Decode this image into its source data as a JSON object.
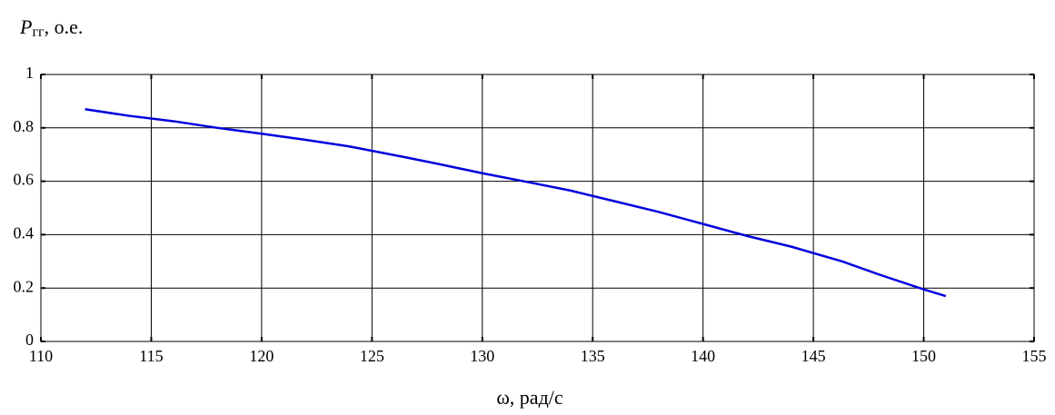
{
  "chart_data": {
    "type": "line",
    "ylabel": {
      "symbol": "P",
      "subscript": "гг",
      "rest": ", о.е."
    },
    "xlabel": "ω, рад/с",
    "x": [
      112,
      114,
      116,
      118,
      120,
      122,
      124,
      126.5,
      128,
      130,
      132,
      134,
      136,
      138,
      140,
      142,
      144,
      146.3,
      148,
      150,
      151
    ],
    "series": [
      {
        "color": "#0000dd",
        "values": [
          0.87,
          0.845,
          0.825,
          0.8,
          0.778,
          0.755,
          0.73,
          0.69,
          0.665,
          0.63,
          0.598,
          0.565,
          0.525,
          0.485,
          0.44,
          0.395,
          0.355,
          0.3,
          0.25,
          0.195,
          0.17
        ]
      }
    ],
    "xlim": [
      110,
      155
    ],
    "xticks": [
      110,
      115,
      120,
      125,
      130,
      135,
      140,
      145,
      150,
      155
    ],
    "ylim": [
      0,
      1
    ],
    "yticks": [
      0,
      0.2,
      0.4,
      0.6,
      0.8,
      1
    ],
    "grid": true
  }
}
